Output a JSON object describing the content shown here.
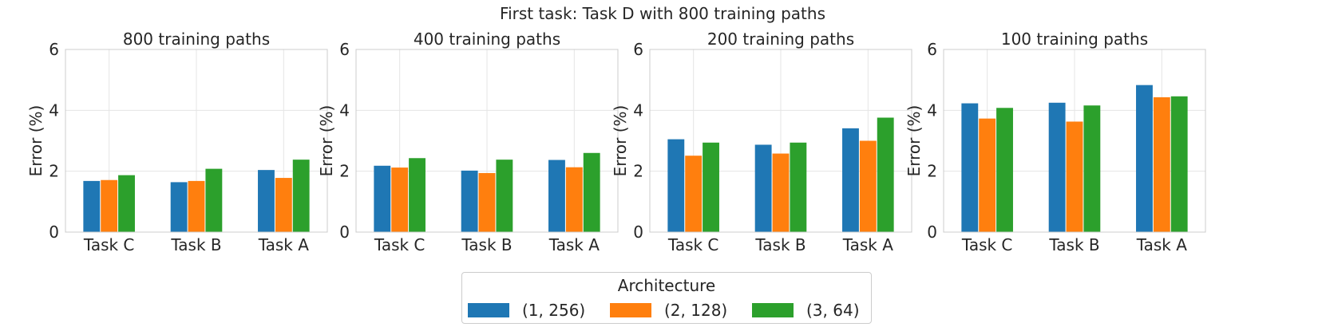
{
  "chart_data": {
    "suptitle": "First task: Task D with 800 training paths",
    "type": "bar",
    "legend": {
      "title": "Architecture",
      "position": "bottom-center",
      "entries": [
        "(1, 256)",
        "(2, 128)",
        "(3, 64)"
      ],
      "colors": [
        "#1f77b4",
        "#ff7f0e",
        "#2ca02c"
      ]
    },
    "panels": [
      {
        "type": "bar",
        "title": "800 training paths",
        "ylabel": "Error (%)",
        "xlabel": "",
        "ylim": [
          0,
          6
        ],
        "yticks": [
          0,
          2,
          4,
          6
        ],
        "grid": true,
        "categories": [
          "Task C",
          "Task B",
          "Task A"
        ],
        "series": [
          {
            "name": "(1, 256)",
            "values": [
              1.68,
              1.64,
              2.04
            ]
          },
          {
            "name": "(2, 128)",
            "values": [
              1.71,
              1.68,
              1.78
            ]
          },
          {
            "name": "(3, 64)",
            "values": [
              1.87,
              2.08,
              2.38
            ]
          }
        ]
      },
      {
        "type": "bar",
        "title": "400 training paths",
        "ylabel": "Error (%)",
        "xlabel": "",
        "ylim": [
          0,
          6
        ],
        "yticks": [
          0,
          2,
          4,
          6
        ],
        "grid": true,
        "categories": [
          "Task C",
          "Task B",
          "Task A"
        ],
        "series": [
          {
            "name": "(1, 256)",
            "values": [
              2.18,
              2.02,
              2.37
            ]
          },
          {
            "name": "(2, 128)",
            "values": [
              2.12,
              1.94,
              2.13
            ]
          },
          {
            "name": "(3, 64)",
            "values": [
              2.43,
              2.38,
              2.6
            ]
          }
        ]
      },
      {
        "type": "bar",
        "title": "200 training paths",
        "ylabel": "Error (%)",
        "xlabel": "",
        "ylim": [
          0,
          6
        ],
        "yticks": [
          0,
          2,
          4,
          6
        ],
        "grid": true,
        "categories": [
          "Task C",
          "Task B",
          "Task A"
        ],
        "series": [
          {
            "name": "(1, 256)",
            "values": [
              3.05,
              2.87,
              3.41
            ]
          },
          {
            "name": "(2, 128)",
            "values": [
              2.51,
              2.58,
              3.0
            ]
          },
          {
            "name": "(3, 64)",
            "values": [
              2.94,
              2.94,
              3.76
            ]
          }
        ]
      },
      {
        "type": "bar",
        "title": "100 training paths",
        "ylabel": "Error (%)",
        "xlabel": "",
        "ylim": [
          0,
          6
        ],
        "yticks": [
          0,
          2,
          4,
          6
        ],
        "grid": true,
        "categories": [
          "Task C",
          "Task B",
          "Task A"
        ],
        "series": [
          {
            "name": "(1, 256)",
            "values": [
              4.23,
              4.25,
              4.83
            ]
          },
          {
            "name": "(2, 128)",
            "values": [
              3.73,
              3.63,
              4.43
            ]
          },
          {
            "name": "(3, 64)",
            "values": [
              4.08,
              4.16,
              4.46
            ]
          }
        ]
      }
    ]
  }
}
